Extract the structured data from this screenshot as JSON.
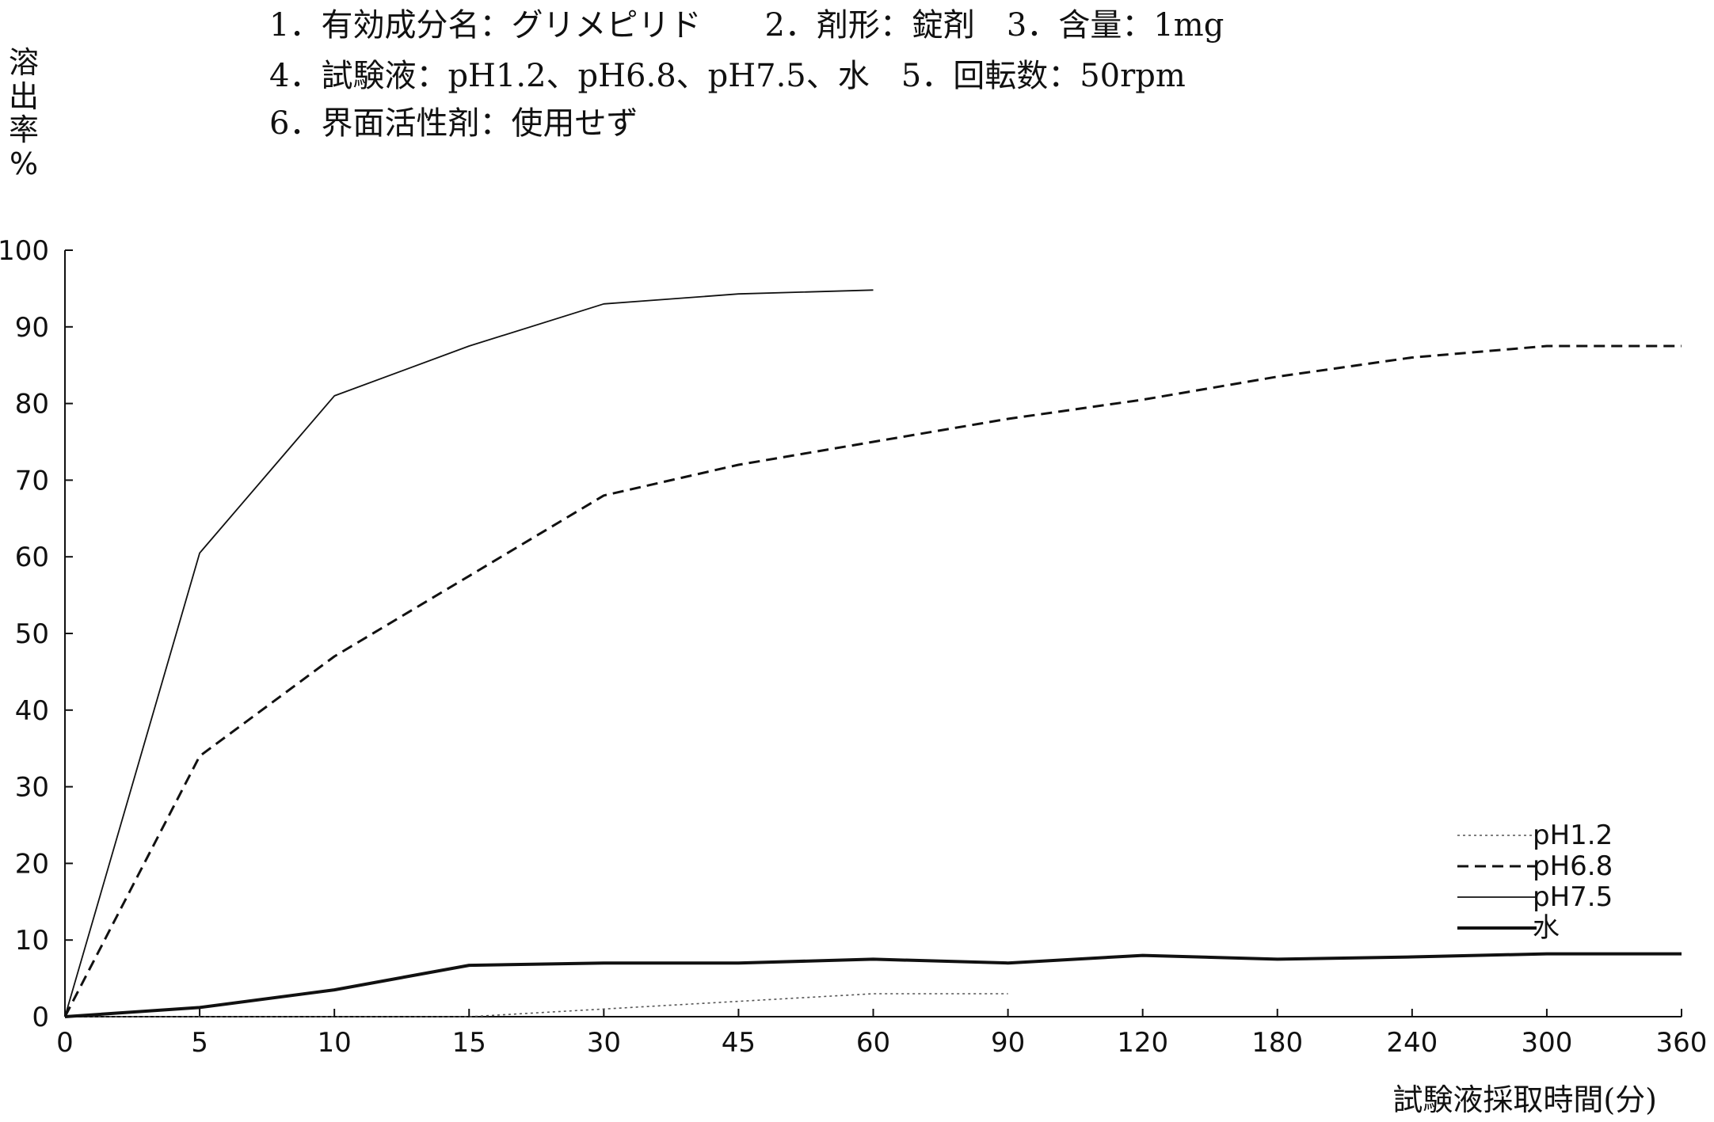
{
  "header": {
    "line1": "1．有効成分名：グリメピリド　　2．剤形：錠剤　3．含量：1mg",
    "line2": "4．試験液：pH1.2、pH6.8、pH7.5、水　5．回転数：50rpm",
    "line3": "6．界面活性剤：使用せず"
  },
  "chart_data": {
    "type": "line",
    "ylabel": "溶出率(%)",
    "xlabel": "試験液採取時間(分)",
    "x_ticks": [
      "0",
      "5",
      "10",
      "15",
      "30",
      "45",
      "60",
      "90",
      "120",
      "180",
      "240",
      "300",
      "360"
    ],
    "y_ticks": [
      "0",
      "10",
      "20",
      "30",
      "40",
      "50",
      "60",
      "70",
      "80",
      "90",
      "100"
    ],
    "ylim": [
      0,
      100
    ],
    "x_scale": "categorical-nonlinear",
    "legend_position": "bottom-right",
    "grid": false,
    "series": [
      {
        "name": "pH1.2",
        "style": "dotted",
        "color": "#555555",
        "x": [
          0,
          5,
          10,
          15,
          30,
          45,
          60,
          90
        ],
        "y": [
          0,
          0,
          0,
          0,
          1,
          2,
          3,
          3
        ]
      },
      {
        "name": "pH6.8",
        "style": "dashed",
        "color": "#111111",
        "x": [
          0,
          5,
          10,
          15,
          30,
          45,
          60,
          90,
          120,
          180,
          240,
          300,
          360
        ],
        "y": [
          0,
          34,
          47,
          57.5,
          68,
          72,
          75,
          78,
          80.5,
          83.5,
          86,
          87.5,
          87.5
        ]
      },
      {
        "name": "pH7.5",
        "style": "thin",
        "color": "#111111",
        "x": [
          0,
          5,
          10,
          15,
          30,
          45,
          60
        ],
        "y": [
          0,
          60.5,
          81,
          87.5,
          93,
          94.3,
          94.8
        ]
      },
      {
        "name": "水",
        "style": "thick",
        "color": "#111111",
        "x": [
          0,
          5,
          10,
          15,
          30,
          45,
          60,
          90,
          120,
          180,
          240,
          300,
          360
        ],
        "y": [
          0,
          1.2,
          3.5,
          6.7,
          7,
          7,
          7.5,
          7,
          8,
          7.5,
          7.8,
          8.2,
          8.2
        ]
      }
    ]
  }
}
